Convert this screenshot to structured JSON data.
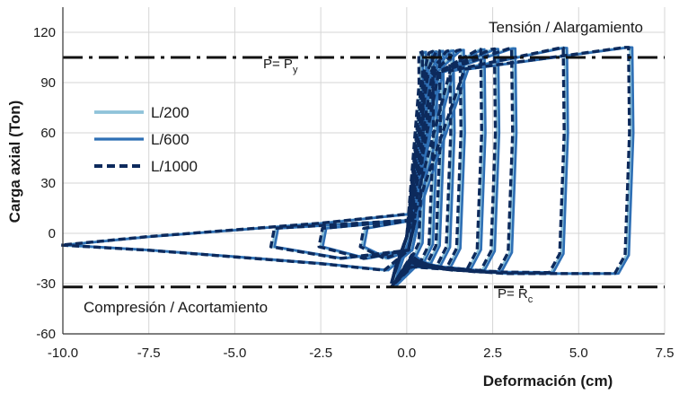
{
  "chart_data": {
    "type": "line",
    "xlabel": "Deformación (cm)",
    "ylabel": "Carga axial (Ton)",
    "xlim": [
      -10.0,
      7.5
    ],
    "ylim": [
      -60,
      135
    ],
    "x_ticks": [
      "-10.0",
      "-7.5",
      "-5.0",
      "-2.5",
      "0.0",
      "2.5",
      "5.0",
      "7.5"
    ],
    "y_ticks": [
      "-60",
      "-30",
      "0",
      "30",
      "60",
      "90",
      "120"
    ],
    "x_tick_values": [
      -10.0,
      -7.5,
      -5.0,
      -2.5,
      0.0,
      2.5,
      5.0,
      7.5
    ],
    "y_tick_values": [
      -60,
      -30,
      0,
      30,
      60,
      90,
      120
    ],
    "grid": true,
    "legend_position": "left",
    "annotations": {
      "tension": "Tensión / Alargamiento",
      "compression": "Compresión / Acortamiento"
    },
    "reference_lines": [
      {
        "y": 105,
        "label_main": "P= P",
        "label_sub": "y"
      },
      {
        "y": -32,
        "label_main": "P= R",
        "label_sub": "c"
      }
    ],
    "cycle_amplitudes": [
      0.5,
      0.8,
      1.0,
      1.3,
      1.6,
      2.2,
      2.6,
      3.1,
      4.6,
      6.5
    ],
    "compression_tip": [
      -10.0,
      -7
    ],
    "series": [
      {
        "name": "L/200",
        "color": "#8fc3d9",
        "dash": "solid",
        "width": 3.2,
        "offset": 0.0
      },
      {
        "name": "L/600",
        "color": "#2e6fb5",
        "dash": "solid",
        "width": 2.6,
        "offset": 0.06
      },
      {
        "name": "L/1000",
        "color": "#0d2a5c",
        "dash": "dashed",
        "width": 3.4,
        "offset": -0.05
      }
    ]
  }
}
